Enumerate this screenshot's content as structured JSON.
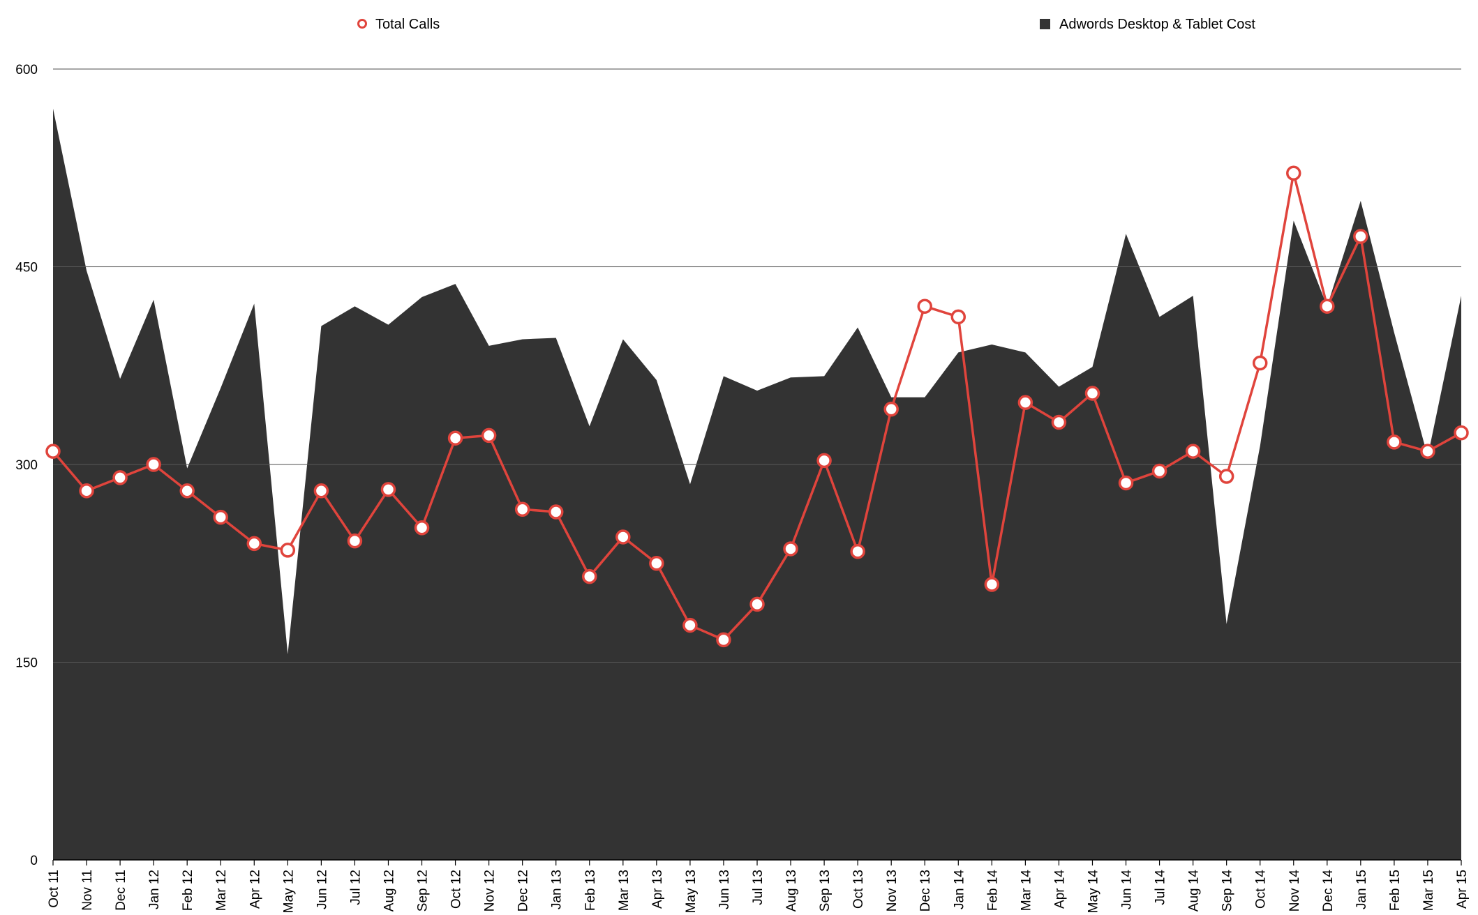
{
  "legend": [
    {
      "name": "Total Calls",
      "color": "#e0443c",
      "marker": "hollow-circle"
    },
    {
      "name": "Adwords Desktop & Tablet Cost",
      "color": "#333333",
      "marker": "filled-square"
    }
  ],
  "chart_data": {
    "type": "line",
    "title": "",
    "xlabel": "",
    "ylabel": "",
    "ylim": [
      0,
      600
    ],
    "yticks": [
      0,
      150,
      300,
      450,
      600
    ],
    "grid": true,
    "legend_position": "top",
    "categories": [
      "Oct 11",
      "Nov 11",
      "Dec 11",
      "Jan 12",
      "Feb 12",
      "Mar 12",
      "Apr 12",
      "May 12",
      "Jun 12",
      "Jul 12",
      "Aug 12",
      "Sep 12",
      "Oct 12",
      "Nov 12",
      "Dec 12",
      "Jan 13",
      "Feb 13",
      "Mar 13",
      "Apr 13",
      "May 13",
      "Jun 13",
      "Jul 13",
      "Aug 13",
      "Sep 13",
      "Oct 13",
      "Nov 13",
      "Dec 13",
      "Jan 14",
      "Feb 14",
      "Mar 14",
      "Apr 14",
      "May 14",
      "Jun 14",
      "Jul 14",
      "Aug 14",
      "Sep 14",
      "Oct 14",
      "Nov 14",
      "Dec 14",
      "Jan 15",
      "Feb 15",
      "Mar 15",
      "Apr 15"
    ],
    "series": [
      {
        "name": "Adwords Desktop & Tablet Cost",
        "type": "area",
        "color": "#333333",
        "values": [
          570,
          447,
          365,
          425,
          297,
          358,
          422,
          156,
          405,
          420,
          406,
          427,
          437,
          390,
          395,
          396,
          329,
          395,
          364,
          285,
          367,
          356,
          366,
          367,
          404,
          351,
          351,
          385,
          391,
          385,
          359,
          374,
          475,
          412,
          428,
          179,
          314,
          485,
          420,
          500,
          400,
          306,
          428
        ]
      },
      {
        "name": "Total Calls",
        "type": "line",
        "color": "#e0443c",
        "values": [
          310,
          280,
          290,
          300,
          280,
          260,
          240,
          235,
          280,
          242,
          281,
          252,
          320,
          322,
          266,
          264,
          215,
          245,
          225,
          178,
          167,
          194,
          236,
          303,
          234,
          342,
          420,
          412,
          209,
          347,
          332,
          354,
          286,
          295,
          310,
          291,
          377,
          521,
          420,
          473,
          317,
          310,
          324
        ]
      }
    ]
  }
}
